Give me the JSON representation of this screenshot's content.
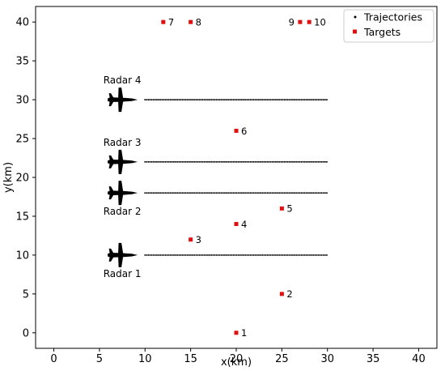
{
  "chart_data": {
    "type": "scatter",
    "title": "",
    "xlabel": "x(km)",
    "ylabel": "y(km)",
    "xlim": [
      -2,
      42
    ],
    "ylim": [
      -2,
      42
    ],
    "xticks": [
      0,
      5,
      10,
      15,
      20,
      25,
      30,
      35,
      40
    ],
    "yticks": [
      0,
      5,
      10,
      15,
      20,
      25,
      30,
      35,
      40
    ],
    "grid": false,
    "legend_position": "top-right",
    "legend": [
      {
        "label": "Trajectories",
        "marker": "dot",
        "color": "#000000"
      },
      {
        "label": "Targets",
        "marker": "square",
        "color": "#e01010"
      }
    ],
    "targets": [
      {
        "label": "1",
        "x": 20,
        "y": 0
      },
      {
        "label": "2",
        "x": 25,
        "y": 5
      },
      {
        "label": "3",
        "x": 15,
        "y": 12
      },
      {
        "label": "4",
        "x": 20,
        "y": 14
      },
      {
        "label": "5",
        "x": 25,
        "y": 16
      },
      {
        "label": "6",
        "x": 20,
        "y": 26
      },
      {
        "label": "7",
        "x": 12,
        "y": 40
      },
      {
        "label": "8",
        "x": 15,
        "y": 40
      },
      {
        "label": "9",
        "x": 27,
        "y": 40
      },
      {
        "label": "10",
        "x": 28,
        "y": 40
      }
    ],
    "trajectories": [
      {
        "radar": "Radar 1",
        "y": 10,
        "x_start": 10,
        "x_end": 30
      },
      {
        "radar": "Radar 2",
        "y": 18,
        "x_start": 10,
        "x_end": 30
      },
      {
        "radar": "Radar 3",
        "y": 22,
        "x_start": 10,
        "x_end": 30
      },
      {
        "radar": "Radar 4",
        "y": 30,
        "x_start": 10,
        "x_end": 30
      }
    ],
    "radars": [
      {
        "label": "Radar 1",
        "x": 7.5,
        "y": 10,
        "label_side": "below"
      },
      {
        "label": "Radar 2",
        "x": 7.5,
        "y": 18,
        "label_side": "below"
      },
      {
        "label": "Radar 3",
        "x": 7.5,
        "y": 22,
        "label_side": "above"
      },
      {
        "label": "Radar 4",
        "x": 7.5,
        "y": 30,
        "label_side": "above"
      }
    ],
    "colors": {
      "target": "#e01010",
      "trajectory": "#000000",
      "radar_icon": "#000000"
    }
  }
}
